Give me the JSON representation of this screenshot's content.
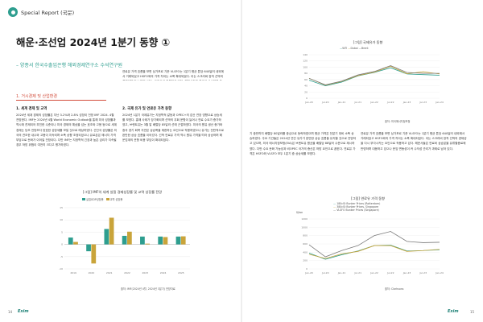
{
  "header": {
    "label": "Special Report (국문)"
  },
  "title": "해운·조선업 2024년 1분기 동향 ①",
  "subtitle": "– 양종서 한국수출입은행 해외경제연구소 수석연구원",
  "section1": {
    "heading": "1. 거시경제 및 산업환경",
    "sub1": "1. 세계 경제 및 교역",
    "para1": "2024년 세계 경제의 성장률은 지난 3.2%와 2.8% 성장이 전망 IMF 2024. 4월 전망한다. IMF는 2024년 4월 World Economic Outlook을 통해 미국 성장률과 역시에 견제되어 부진한 수준이나 미국 경제의 예상을 넘는 호조와 고용 등으로 세계 경제는 당초 전망보다 양호한 성장세를 보일 것으로 예상하였다. 선진국 성장률은 미국의 견조한 내수와 고용이 지속되며 소폭 상향 조정되었으나 유로존은 에너지 가격 부담으로 둔화가 이어질 전망이다. 다만 IMF는 지정학적 긴장과 높은 금리가 지속될 경우 하방 위험이 여전히 크다고 평가하였다."
  },
  "chart1": {
    "title": "[그림] IMF의 세계 실질 경제성장률 및 교역 성장률 전망",
    "source": "출처: IMF(2024년 4월, 2024년 3분기) 전망자료",
    "chart_data": {
      "type": "bar",
      "categories": [
        "2019",
        "2020",
        "2021",
        "2022",
        "2023",
        "2024",
        "2025"
      ],
      "series": [
        {
          "name": "실질GDP성장률",
          "values": [
            2.8,
            -2.8,
            6.3,
            3.5,
            3.2,
            3.2,
            3.2
          ]
        },
        {
          "name": "교역 성장률",
          "values": [
            1.0,
            -7.8,
            10.9,
            5.2,
            0.3,
            3.0,
            3.3
          ]
        }
      ],
      "ylim": [
        -10,
        15
      ]
    }
  },
  "col2": {
    "sub2": "2. 국제 유가 및 연료유 가격 동향",
    "para2": "2024년 1분기 국제유가는 지정학적 갈등과 OPEC+의 감산 연장 영향으로 상승세를 보였다. 홍해 사태가 장기화되며 선박의 우회 운항이 늘어나 연료 수요가 증가하였고, 브렌트유는 3월 말 배럴당 85달러 선에 근접하였다. 미국의 원유 생산 증가와 중국 경기 회복 지연은 상승폭을 제한하는 요인으로 작용하였으나 유가는 전반적으로 완만한 상승 흐름을 이어갔다. 선박 연료유 가격 역시 원유 가격을 따라 상승하며 해운업계의 운항 비용 부담이 확대되었다."
  },
  "right": {
    "para1": "기 중반까지 배럴당 80달러를 중심으로 등락하였으며 평균 가격은 전분기 대비 소폭 상승하였다. 주요 기관들은 2024년 연간 유가가 완만한 상승 흐름을 유지할 것으로 전망하고 있으며, 미국 에너지정보청(EIA)은 브렌트유 평균을 배럴당 88달러 수준으로 제시하였다. 다만 수요 둔화 가능성과 비OPEC 국가의 증산은 하방 요인으로 꼽힌다. 연료유 가격은 HSFO와 VLSFO 모두 1분기 중 상승세를 보였다.",
    "para2": "연료유 가격 흐름을 보면 싱가포르 기준 VLSFO는 1분기 평균 톤당 640달러 내외에서 거래되었고 HSFO와의 가격 차이는 소폭 확대되었다. 이는 스크러버 장착 선박의 경제성을 다시 부각시키는 요인으로 작용하고 있다. 해운사들은 연료비 상승분을 유류할증료에 반영하며 대응하고 있으나 운임 변동성이 커 수익성 관리가 과제로 남아 있다."
  },
  "chart2": {
    "title": "[그림] 국제유가 동향",
    "source": "출처: 미국에너지정보청",
    "chart_data": {
      "type": "line",
      "x": [
        "Jan-20",
        "Jul-20",
        "Jan-21",
        "Jul-21",
        "Jan-22",
        "Jul-22",
        "Jan-23",
        "Jul-23",
        "Jan-24"
      ],
      "series": [
        {
          "name": "WTI",
          "values": [
            58,
            40,
            52,
            72,
            83,
            98,
            78,
            76,
            74
          ]
        },
        {
          "name": "Dubai",
          "values": [
            64,
            42,
            54,
            73,
            84,
            103,
            79,
            85,
            78
          ]
        },
        {
          "name": "Brent",
          "values": [
            64,
            43,
            55,
            75,
            86,
            105,
            83,
            80,
            80
          ]
        }
      ],
      "ylim": [
        0,
        140
      ],
      "yticks": [
        0,
        20,
        40,
        60,
        80,
        100,
        120,
        140
      ]
    }
  },
  "chart3": {
    "title": "[그림] 연료유 가격 동향",
    "ylabel": "$/ton",
    "source": "출처: Clarksons",
    "chart_data": {
      "type": "line",
      "x": [
        "Jan-20",
        "Jul-20",
        "Jan-21",
        "Jul-21",
        "Jan-22",
        "Jul-22",
        "Jan-23",
        "Jul-23",
        "Jan-24"
      ],
      "series": [
        {
          "name": "180cSt Bunker Prices (Rotterdam)",
          "values": [
            380,
            230,
            340,
            430,
            560,
            570,
            430,
            440,
            460
          ]
        },
        {
          "name": "380cSt Bunker Prices, Singapore",
          "values": [
            350,
            250,
            360,
            420,
            560,
            560,
            420,
            440,
            470
          ]
        },
        {
          "name": "VLSFO Bunker Prices (Singapore)",
          "values": [
            580,
            290,
            440,
            560,
            800,
            900,
            660,
            630,
            640
          ]
        }
      ],
      "ylim": [
        0,
        1200
      ],
      "yticks": [
        0,
        200,
        400,
        600,
        800,
        1000,
        1200
      ]
    }
  },
  "colors": {
    "accent": "#2e9e8f",
    "red": "#d24d3c",
    "series1": "#2e9e8f",
    "series2": "#c9a43a",
    "series3": "#7a7a7a"
  },
  "footer": {
    "left_page": "14",
    "right_page": "15",
    "brand": "Exim"
  }
}
